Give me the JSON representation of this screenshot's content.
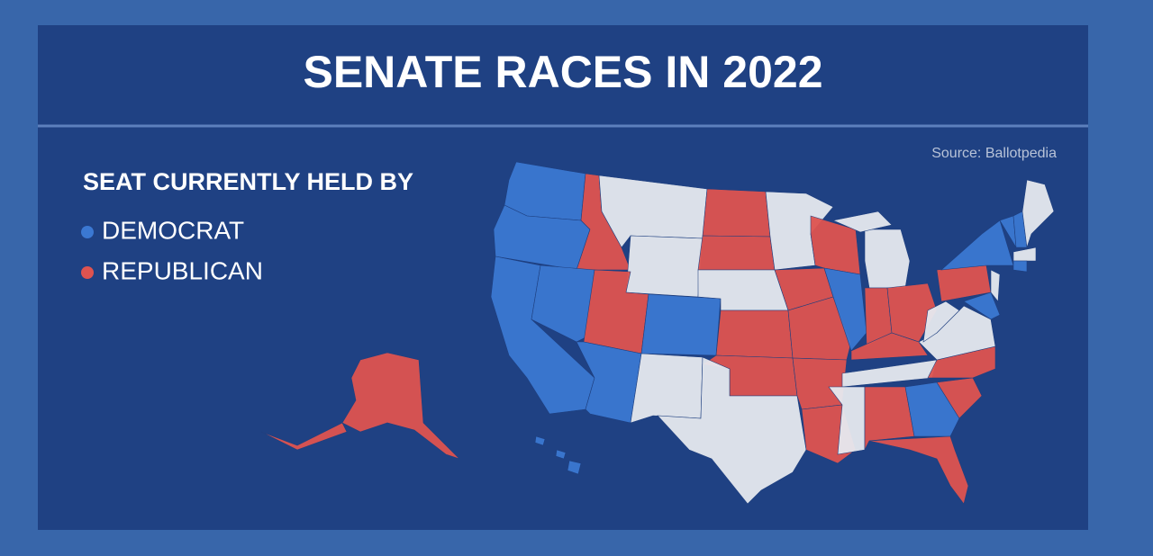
{
  "header": {
    "title": "SENATE RACES IN 2022"
  },
  "source": "Source: Ballotpedia",
  "legend": {
    "title": "SEAT CURRENTLY HELD BY",
    "items": [
      {
        "label": "DEMOCRAT",
        "color": "#3b78d2"
      },
      {
        "label": "REPUBLICAN",
        "color": "#de5350"
      }
    ]
  }
}
